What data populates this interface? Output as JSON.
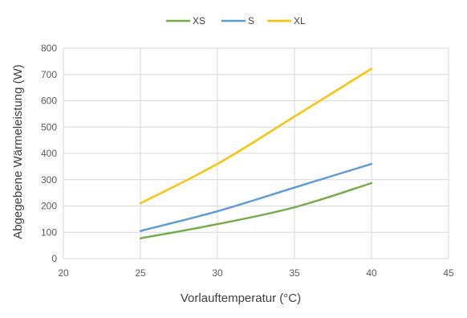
{
  "chart_data": {
    "type": "line",
    "title": "",
    "xlabel": "Vorlauftemperatur (°C)",
    "ylabel": "Abgegebene Wärmeleistung (W)",
    "xlim": [
      20,
      45
    ],
    "ylim": [
      0,
      800
    ],
    "x_ticks": [
      20,
      25,
      30,
      35,
      40,
      45
    ],
    "y_ticks": [
      0,
      100,
      200,
      300,
      400,
      500,
      600,
      700,
      800
    ],
    "grid": true,
    "legend_position": "top",
    "series": [
      {
        "name": "XS",
        "color": "#70AD47",
        "x": [
          25,
          30,
          35,
          40
        ],
        "y": [
          77,
          131,
          195,
          287
        ]
      },
      {
        "name": "S",
        "color": "#5B9BD5",
        "x": [
          25,
          30,
          35,
          40
        ],
        "y": [
          105,
          180,
          270,
          360
        ]
      },
      {
        "name": "XL",
        "color": "#FFC000",
        "x": [
          25,
          30,
          35,
          40
        ],
        "y": [
          210,
          360,
          540,
          722
        ]
      }
    ]
  }
}
